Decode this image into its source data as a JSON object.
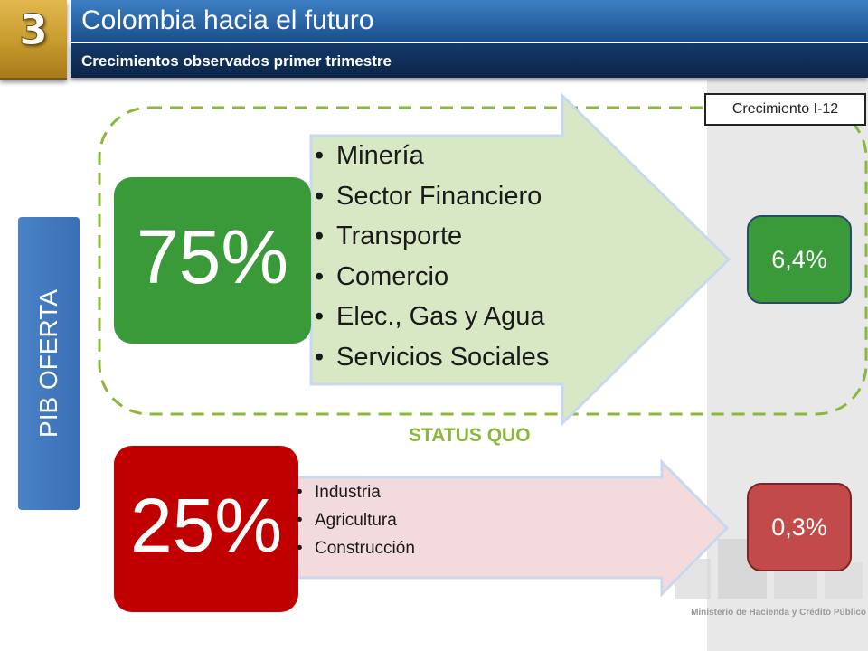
{
  "header": {
    "section_number": "3",
    "title": "Colombia hacia el futuro",
    "subtitle": "Crecimientos observados primer trimestre"
  },
  "growth_header": "Crecimiento I-12",
  "side_label": "PIB OFERTA",
  "top_group": {
    "share": "75%",
    "sectors": [
      "Minería",
      "Sector Financiero",
      "Transporte",
      "Comercio",
      "Elec., Gas y Agua",
      "Servicios Sociales"
    ],
    "growth": "6,4%",
    "color": "#3a9a3a"
  },
  "status_label": "STATUS QUO",
  "bottom_group": {
    "share": "25%",
    "sectors": [
      "Industria",
      "Agricultura",
      "Construcción"
    ],
    "growth": "0,3%",
    "color": "#c00000"
  },
  "footer": {
    "ministry": "Ministerio de Hacienda y Crédito Público"
  }
}
